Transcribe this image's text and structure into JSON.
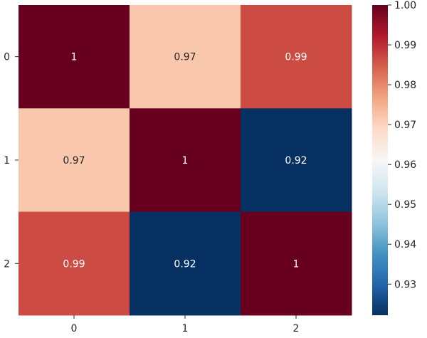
{
  "chart_data": {
    "type": "heatmap",
    "title": "",
    "xlabel": "",
    "ylabel": "",
    "x_tick_labels": [
      "0",
      "1",
      "2"
    ],
    "y_tick_labels": [
      "0",
      "1",
      "2"
    ],
    "values": [
      [
        1.0,
        0.97,
        0.99
      ],
      [
        0.97,
        1.0,
        0.92
      ],
      [
        0.99,
        0.92,
        1.0
      ]
    ],
    "annotations": [
      [
        "1",
        "0.97",
        "0.99"
      ],
      [
        "0.97",
        "1",
        "0.92"
      ],
      [
        "0.99",
        "0.92",
        "1"
      ]
    ],
    "colorbar": {
      "colormap": "RdBu_r",
      "vmin": 0.9222,
      "vmax": 1.0,
      "tick_values": [
        0.93,
        0.94,
        0.95,
        0.96,
        0.97,
        0.98,
        0.99,
        1.0
      ],
      "tick_labels": [
        "0.93",
        "0.94",
        "0.95",
        "0.96",
        "0.97",
        "0.98",
        "0.99",
        "1.00"
      ]
    },
    "cell_colors": [
      [
        "#67001f",
        "#f9c8ac",
        "#cc4c44"
      ],
      [
        "#f9c8ac",
        "#67001f",
        "#053061"
      ],
      [
        "#cc4c44",
        "#053061",
        "#67001f"
      ]
    ],
    "annotation_text_colors": [
      [
        "#ffffff",
        "#262626",
        "#ffffff"
      ],
      [
        "#262626",
        "#ffffff",
        "#ffffff"
      ],
      [
        "#ffffff",
        "#ffffff",
        "#ffffff"
      ]
    ],
    "colorbar_gradient": [
      "#053061",
      "#2166ac",
      "#4393c3",
      "#92c5de",
      "#d1e5f0",
      "#f7f7f7",
      "#fddbc7",
      "#f4a582",
      "#d6604d",
      "#b2182b",
      "#67001f"
    ],
    "text_color": "#262626",
    "grid": false
  }
}
